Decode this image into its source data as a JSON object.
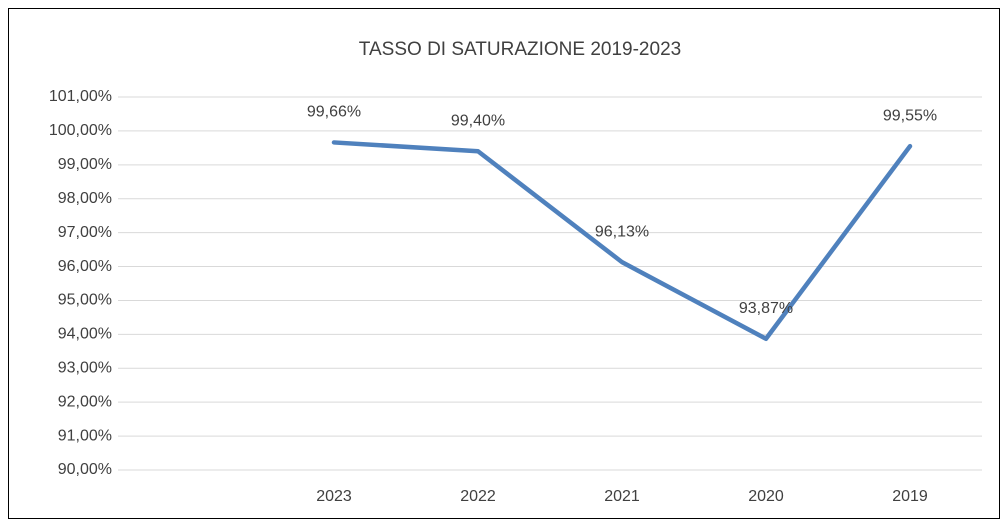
{
  "chart_data": {
    "type": "line",
    "title": "TASSO DI SATURAZIONE 2019-2023",
    "categories": [
      null,
      "2023",
      "2022",
      "2021",
      "2020",
      "2019"
    ],
    "values": [
      null,
      99.66,
      99.4,
      96.13,
      93.87,
      99.55
    ],
    "value_labels": [
      null,
      "99,66%",
      "99,40%",
      "96,13%",
      "93,87%",
      "99,55%"
    ],
    "color": "#4f81bd",
    "ylim": [
      90,
      101
    ],
    "yticks": [
      {
        "value": 90,
        "label": "90,00%"
      },
      {
        "value": 91,
        "label": "91,00%"
      },
      {
        "value": 92,
        "label": "92,00%"
      },
      {
        "value": 93,
        "label": "93,00%"
      },
      {
        "value": 94,
        "label": "94,00%"
      },
      {
        "value": 95,
        "label": "95,00%"
      },
      {
        "value": 96,
        "label": "96,00%"
      },
      {
        "value": 97,
        "label": "97,00%"
      },
      {
        "value": 98,
        "label": "98,00%"
      },
      {
        "value": 99,
        "label": "99,00%"
      },
      {
        "value": 100,
        "label": "100,00%"
      },
      {
        "value": 101,
        "label": "101,00%"
      }
    ],
    "grid": true
  }
}
